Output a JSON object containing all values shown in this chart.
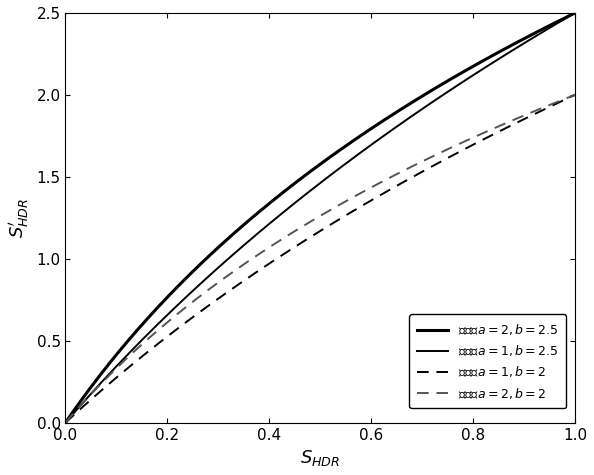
{
  "xlim": [
    0,
    1
  ],
  "ylim": [
    0,
    2.5
  ],
  "xlabel": "$S_{HDR}$",
  "ylabel": "$S^{\\prime}_{HDR}$",
  "xticks": [
    0,
    0.2,
    0.4,
    0.6,
    0.8,
    1.0
  ],
  "yticks": [
    0,
    0.5,
    1.0,
    1.5,
    2.0,
    2.5
  ],
  "curves": [
    {
      "a": 2,
      "b": 2.5,
      "style": "solid",
      "color": "#000000",
      "lw": 2.2,
      "label": "下实线a=2,b=2.5"
    },
    {
      "a": 1,
      "b": 2.5,
      "style": "solid",
      "color": "#000000",
      "lw": 1.4,
      "label": "上实线a=1,b=2.5"
    },
    {
      "a": 1,
      "b": 2.0,
      "style": "dashed",
      "color": "#000000",
      "lw": 1.4,
      "label": "上虚线a=1,b=2"
    },
    {
      "a": 2,
      "b": 2.0,
      "style": "dashed",
      "color": "#555555",
      "lw": 1.4,
      "label": "下虚线a=2,b=2"
    }
  ],
  "legend_loc": "lower right",
  "bg_color": "#ffffff",
  "font_size": 13,
  "tick_fontsize": 11
}
